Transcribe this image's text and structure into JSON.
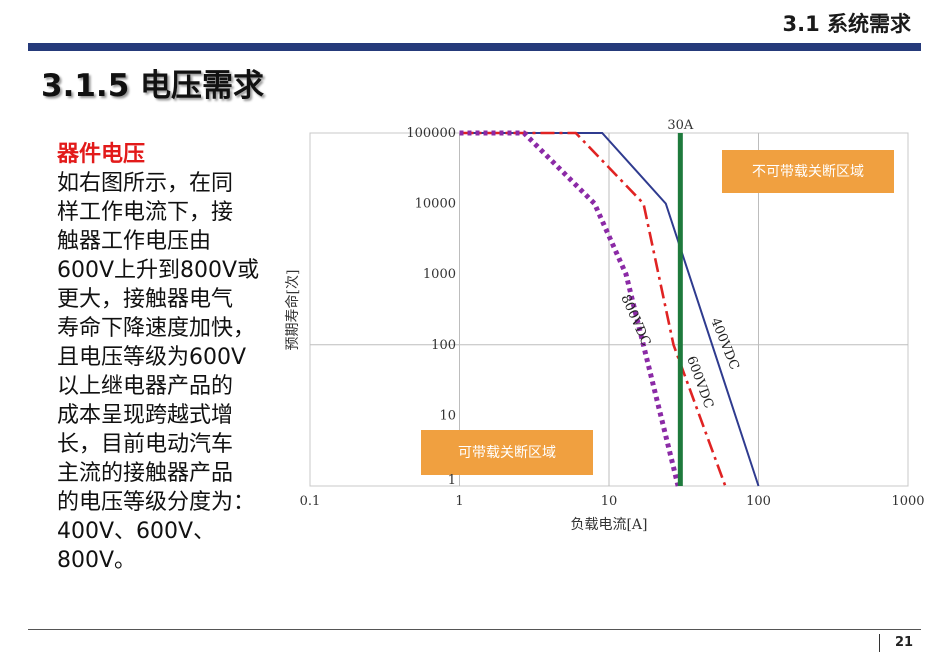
{
  "header": {
    "section": "3.1 系统需求"
  },
  "slide": {
    "title": "3.1.5 电压需求"
  },
  "body": {
    "heading": "器件电压",
    "paragraph": "如右图所示，在同\n样工作电流下，接\n触器工作电压由\n600V上升到800V或\n更大，接触器电气\n寿命下降速度加快，\n且电压等级为600V\n以上继电器产品的\n成本呈现跨越式增\n长，目前电动汽车\n主流的接触器产品\n的电压等级分度为：\n400V、600V、\n800V。"
  },
  "chart_data": {
    "type": "line",
    "title": "",
    "xlabel": "负载电流[A]",
    "ylabel": "预期寿命[次]",
    "x_scale": "log",
    "y_scale": "log",
    "xlim": [
      0.1,
      1000
    ],
    "ylim": [
      1,
      100000
    ],
    "x_ticks": [
      "0.1",
      "1",
      "10",
      "100",
      "1000"
    ],
    "y_ticks": [
      "1",
      "10",
      "100",
      "1000",
      "10000",
      "100000"
    ],
    "grid": true,
    "series": [
      {
        "name": "400VDC",
        "color": "#2f3b8f",
        "style": "solid",
        "x": [
          1,
          9,
          24,
          100
        ],
        "y": [
          100000,
          100000,
          10000,
          1
        ]
      },
      {
        "name": "600VDC",
        "color": "#e02323",
        "style": "dashdot",
        "x": [
          1,
          6,
          17,
          27,
          60
        ],
        "y": [
          100000,
          100000,
          10000,
          100,
          1
        ]
      },
      {
        "name": "800VDC",
        "color": "#8b2aa6",
        "style": "dotted",
        "x": [
          1,
          2.7,
          8,
          13,
          29
        ],
        "y": [
          100000,
          100000,
          10000,
          1000,
          1
        ]
      }
    ],
    "vline": {
      "x": 30,
      "label": "30A",
      "color": "#1e7a3c"
    },
    "annotations": [
      {
        "text": "不可带载关断区域",
        "color": "#f0a040"
      },
      {
        "text": "可带载关断区域",
        "color": "#f0a040"
      }
    ]
  },
  "footer": {
    "page": "21"
  }
}
